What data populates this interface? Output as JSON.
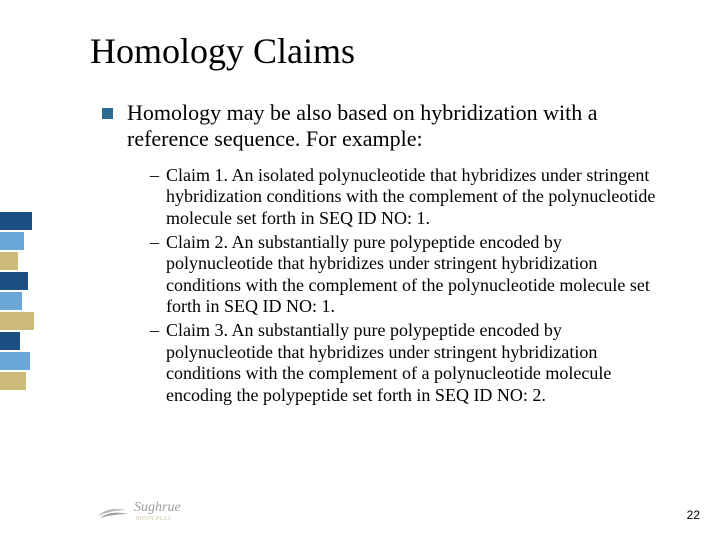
{
  "title": "Homology Claims",
  "main_bullet": {
    "text": "Homology may be also based on hybridization with a reference sequence.  For example:",
    "icon_color": "#2f6b8f"
  },
  "sub_items": [
    "Claim 1.  An isolated polynucleotide that hybridizes under stringent hybridization conditions with the complement of the polynucleotide molecule set forth in SEQ ID NO: 1.",
    "Claim 2.  An substantially pure polypeptide encoded by polynucleotide that hybridizes under stringent hybridization conditions with the complement of the polynucleotide molecule set forth in SEQ ID NO: 1.",
    "Claim 3.  An substantially pure polypeptide encoded by polynucleotide that hybridizes under stringent hybridization conditions with the complement of a polynucleotide molecule encoding the polypeptide set forth in SEQ ID NO: 2."
  ],
  "side_bar_colors": [
    "#1b4e83",
    "#6aa7d6",
    "#cdbb7a",
    "#1b4e83",
    "#6aa7d6",
    "#cdbb7a",
    "#1b4e83",
    "#6aa7d6",
    "#cdbb7a"
  ],
  "side_bar_widths": [
    32,
    24,
    18,
    28,
    22,
    34,
    20,
    30,
    26
  ],
  "logo": {
    "text": "Sughrue",
    "sub": "MION  PLLC"
  },
  "page_number": "22",
  "colors": {
    "background": "#ffffff",
    "text": "#000000",
    "logo_gray": "#9aa0a3"
  }
}
